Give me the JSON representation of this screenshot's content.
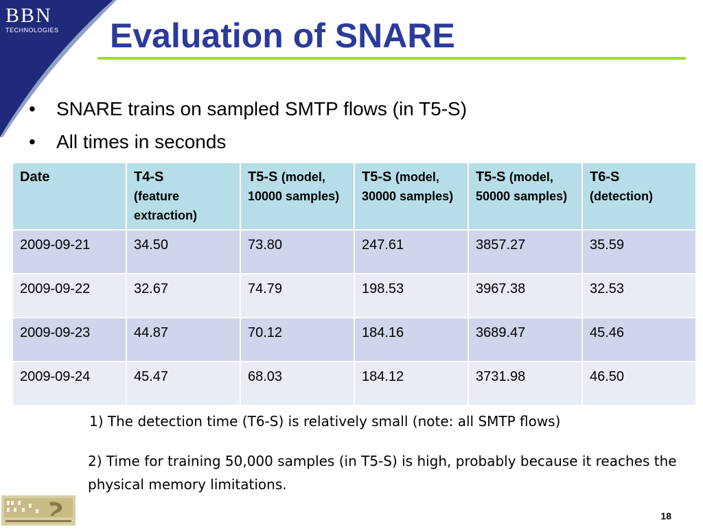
{
  "logo": {
    "name": "BBN",
    "subtitle": "TECHNOLOGIES"
  },
  "title": "Evaluation of SNARE",
  "bullets": [
    "SNARE trains on sampled SMTP flows (in T5-S)",
    "All times in seconds"
  ],
  "bullet_glyph": "•",
  "table": {
    "headers": [
      {
        "main": "Date",
        "sub": ""
      },
      {
        "main": "T4-S",
        "sub": "(feature extraction)"
      },
      {
        "main": "T5-S",
        "sub": "(model, 10000 samples)"
      },
      {
        "main": "T5-S",
        "sub": "(model, 30000 samples)"
      },
      {
        "main": "T5-S",
        "sub": "(model, 50000 samples)"
      },
      {
        "main": "T6-S",
        "sub": "(detection)"
      }
    ],
    "rows": [
      [
        "2009-09-21",
        "34.50",
        "73.80",
        "247.61",
        "3857.27",
        "35.59"
      ],
      [
        "2009-09-22",
        "32.67",
        "74.79",
        "198.53",
        "3967.38",
        "32.53"
      ],
      [
        "2009-09-23",
        "44.87",
        "70.12",
        "184.16",
        "3689.47",
        "45.46"
      ],
      [
        "2009-09-24",
        "45.47",
        "68.03",
        "184.12",
        "3731.98",
        "46.50"
      ]
    ]
  },
  "notes": [
    "1) The detection time (T6-S) is relatively small (note: all SMTP flows)",
    "2) Time for training 50,000 samples (in T5-S) is high, probably because it reaches the physical memory limitations."
  ],
  "footer": {
    "logo_icon": "georgia-tech-information-security-center-logo",
    "page_number": "18"
  },
  "colors": {
    "title": "#2b3a9b",
    "rule": "#99dd33",
    "logo_bg": "#1f2a7a",
    "header_bg": "#b7dde8",
    "row_dark": "#cfd5ea",
    "row_light": "#e9ebf5"
  }
}
